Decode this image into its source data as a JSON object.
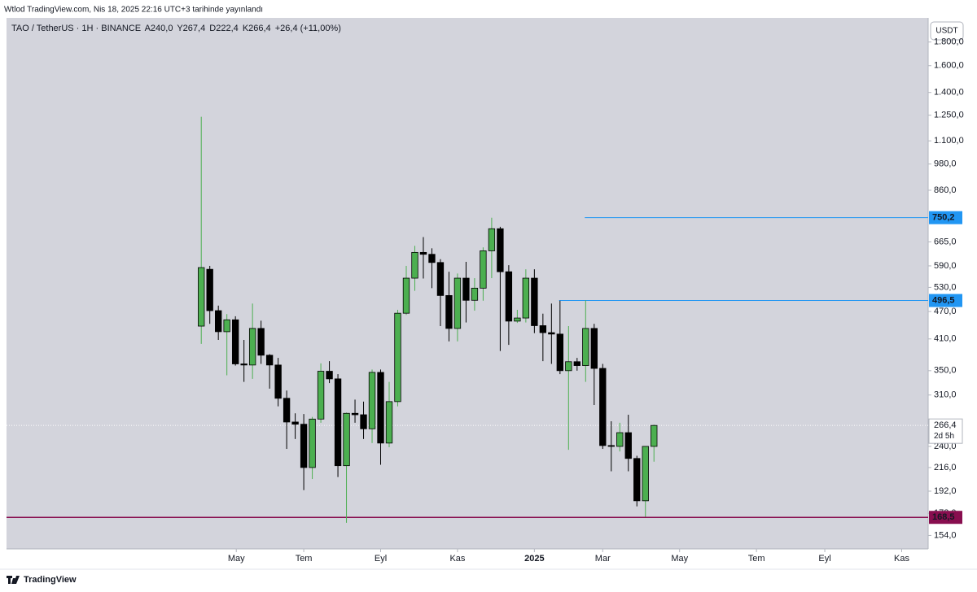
{
  "header": {
    "title": "Wtlod TradingView.com, Nis 18, 2025 22:16 UTC+3 tarihinde yayınlandı"
  },
  "brand": "TradingView",
  "chart_data": {
    "type": "candlestick",
    "legend": {
      "symbol": "TAO / TetherUS · 1H · BINANCE",
      "open": "A240,0",
      "high": "Y267,4",
      "low": "D222,4",
      "close": "K266,4",
      "change": "+26,4 (+11,00%)"
    },
    "currency": "USDT",
    "open": [
      437,
      580,
      472,
      425,
      451,
      362,
      360,
      432,
      378,
      360,
      305,
      271,
      268,
      216,
      275,
      349,
      336,
      218,
      283,
      281,
      262,
      347,
      244,
      300,
      466,
      555,
      631,
      625,
      600,
      509,
      432,
      555,
      497,
      528,
      636,
      710,
      573,
      448,
      455,
      555,
      438,
      423,
      420,
      350,
      366,
      359,
      432,
      354,
      241,
      240,
      257,
      226,
      183,
      240
    ],
    "high": [
      1240,
      590,
      484,
      464,
      459,
      408,
      489,
      449,
      380,
      373,
      317,
      283,
      282,
      278,
      363,
      367,
      344,
      284,
      303,
      300,
      352,
      352,
      331,
      474,
      590,
      652,
      681,
      644,
      610,
      573,
      568,
      602,
      555,
      647,
      750,
      717,
      592,
      474,
      580,
      580,
      465,
      489,
      496,
      437,
      373,
      497,
      442,
      362,
      272,
      270,
      281,
      229,
      240,
      267.4
    ],
    "low": [
      400,
      442,
      408,
      342,
      359,
      331,
      336,
      362,
      320,
      293,
      237,
      249,
      193,
      204,
      270,
      329,
      206,
      164,
      270,
      249,
      244,
      219,
      239,
      293,
      462,
      521,
      554,
      528,
      437,
      405,
      405,
      445,
      472,
      496,
      555,
      386,
      398,
      444,
      445,
      422,
      367,
      362,
      344,
      236,
      350,
      331,
      295,
      237,
      212,
      234,
      212,
      178,
      169,
      222.4
    ],
    "close": [
      585,
      472,
      425,
      451,
      362,
      360,
      432,
      378,
      360,
      305,
      271,
      268,
      216,
      275,
      349,
      336,
      218,
      283,
      281,
      262,
      347,
      244,
      300,
      466,
      555,
      631,
      625,
      600,
      509,
      432,
      555,
      497,
      528,
      636,
      710,
      573,
      448,
      455,
      555,
      438,
      423,
      420,
      350,
      366,
      359,
      432,
      354,
      241,
      240,
      257,
      226,
      183,
      240,
      266.4
    ],
    "up_color": "#4caf50",
    "down_color": "#000000",
    "border_color": "#000000",
    "log_scale": true,
    "ylim": [
      144,
      2030
    ],
    "yticks": [
      {
        "value": 1800,
        "label": "1.800,0"
      },
      {
        "value": 1600,
        "label": "1.600,0"
      },
      {
        "value": 1400,
        "label": "1.400,0"
      },
      {
        "value": 1250,
        "label": "1.250,0"
      },
      {
        "value": 1100,
        "label": "1.100,0"
      },
      {
        "value": 980,
        "label": "980,0"
      },
      {
        "value": 860,
        "label": "860,0"
      },
      {
        "value": 665,
        "label": "665,0"
      },
      {
        "value": 590,
        "label": "590,0"
      },
      {
        "value": 530,
        "label": "530,0"
      },
      {
        "value": 470,
        "label": "470,0"
      },
      {
        "value": 410,
        "label": "410,0"
      },
      {
        "value": 350,
        "label": "350,0"
      },
      {
        "value": 310,
        "label": "310,0"
      },
      {
        "value": 240,
        "label": "240,0"
      },
      {
        "value": 216,
        "label": "216,0"
      },
      {
        "value": 192,
        "label": "192,0"
      },
      {
        "value": 172,
        "label": "172,0"
      },
      {
        "value": 154,
        "label": "154,0"
      }
    ],
    "xlim": [
      -22.8,
      85.1
    ],
    "xticks": [
      {
        "value": 4.1,
        "label": "May"
      },
      {
        "value": 12,
        "label": "Tem"
      },
      {
        "value": 21,
        "label": "Eyl"
      },
      {
        "value": 30,
        "label": "Kas"
      },
      {
        "value": 39,
        "label": "2025"
      },
      {
        "value": 47,
        "label": "Mar"
      },
      {
        "value": 56,
        "label": "May"
      },
      {
        "value": 65,
        "label": "Tem"
      },
      {
        "value": 73,
        "label": "Eyl"
      },
      {
        "value": 82,
        "label": "Kas"
      }
    ],
    "lines": [
      {
        "value": 750.2,
        "label": "750,2",
        "color": "#2196f3",
        "from": 44.9
      },
      {
        "value": 496.5,
        "label": "496,5",
        "color": "#2196f3",
        "from": 41.9
      },
      {
        "value": 168.5,
        "label": "168,5",
        "color": "#880e4f"
      }
    ],
    "last_price": {
      "value": 266.4,
      "label": "266,4",
      "countdown": "2d 5h"
    }
  }
}
